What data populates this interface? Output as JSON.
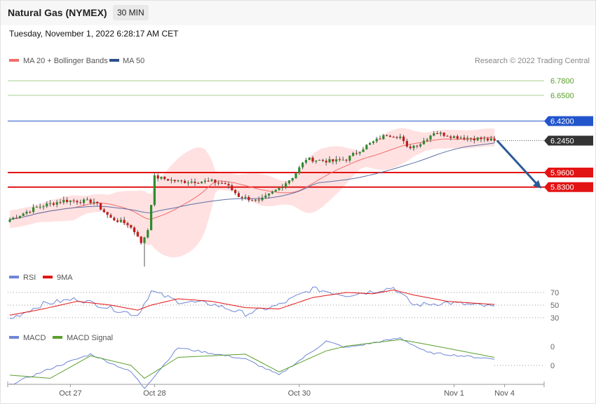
{
  "header": {
    "title": "Natural Gas (NYMEX)",
    "interval": "30 MIN",
    "datetime": "Tuesday, November 1, 2022 6:28:17 AM CET"
  },
  "legend": {
    "ma20": "MA 20 + Bollinger Bands",
    "ma50": "MA 50",
    "copyright": "Research © 2022 Trading Central"
  },
  "colors": {
    "bullish": "#2e8b2e",
    "bearish": "#c41c1c",
    "ma20": "#f26d6d",
    "ma50": "#5f6fa3",
    "bands": "#ffdcdc",
    "target_green": "#a9d18e",
    "resistance_blue": "#2255cc",
    "support_red": "#e31414",
    "arrow": "#2d5a96",
    "rsi": "#6f86d6",
    "rsi_ma": "#e31414",
    "macd": "#6f86d6",
    "macd_signal": "#5aa02c"
  },
  "chart_data": [
    {
      "type": "candlestick",
      "name": "price",
      "x_labels": [
        "Oct 27",
        "Oct 28",
        "Oct 30",
        "Nov 1",
        "Nov 4"
      ],
      "price_levels": [
        {
          "value": 6.78,
          "label": "6.7800",
          "kind": "target"
        },
        {
          "value": 6.65,
          "label": "6.6500",
          "kind": "target"
        },
        {
          "value": 6.42,
          "label": "6.4200",
          "kind": "resistance"
        },
        {
          "value": 6.245,
          "label": "6.2450",
          "kind": "last"
        },
        {
          "value": 5.96,
          "label": "5.9600",
          "kind": "support"
        },
        {
          "value": 5.83,
          "label": "5.8300",
          "kind": "support"
        }
      ],
      "forecast_arrow": {
        "from": 6.245,
        "to": 5.83
      },
      "key_points": [
        {
          "x": 0,
          "close": 5.54
        },
        {
          "x": 8,
          "close": 5.65
        },
        {
          "x": 16,
          "close": 5.71
        },
        {
          "x": 25,
          "close": 5.7
        },
        {
          "x": 30,
          "close": 5.55
        },
        {
          "x": 35,
          "close": 5.5
        },
        {
          "x": 38,
          "close": 5.4
        },
        {
          "x": 39,
          "close": 5.32
        },
        {
          "x": 41,
          "close": 5.45
        },
        {
          "x": 43,
          "close": 5.92
        },
        {
          "x": 50,
          "close": 5.88
        },
        {
          "x": 60,
          "close": 5.88
        },
        {
          "x": 64,
          "close": 5.86
        },
        {
          "x": 68,
          "close": 5.75
        },
        {
          "x": 74,
          "close": 5.7
        },
        {
          "x": 80,
          "close": 5.82
        },
        {
          "x": 84,
          "close": 5.92
        },
        {
          "x": 88,
          "close": 6.08
        },
        {
          "x": 96,
          "close": 6.06
        },
        {
          "x": 100,
          "close": 6.08
        },
        {
          "x": 106,
          "close": 6.2
        },
        {
          "x": 112,
          "close": 6.3
        },
        {
          "x": 116,
          "close": 6.28
        },
        {
          "x": 118,
          "close": 6.18
        },
        {
          "x": 122,
          "close": 6.22
        },
        {
          "x": 126,
          "close": 6.32
        },
        {
          "x": 132,
          "close": 6.28
        },
        {
          "x": 140,
          "close": 6.26
        },
        {
          "x": 144,
          "close": 6.245
        }
      ],
      "spike_low": 5.12
    },
    {
      "type": "line",
      "name": "RSI",
      "series": [
        {
          "name": "RSI"
        },
        {
          "name": "9MA"
        }
      ],
      "levels": [
        70,
        50,
        30
      ],
      "key_points": [
        {
          "x": 0,
          "rsi": 28,
          "ma": 34
        },
        {
          "x": 10,
          "rsi": 52,
          "ma": 44
        },
        {
          "x": 20,
          "rsi": 60,
          "ma": 56
        },
        {
          "x": 30,
          "rsi": 45,
          "ma": 50
        },
        {
          "x": 38,
          "rsi": 34,
          "ma": 42
        },
        {
          "x": 42,
          "rsi": 72,
          "ma": 50
        },
        {
          "x": 50,
          "rsi": 56,
          "ma": 60
        },
        {
          "x": 60,
          "rsi": 52,
          "ma": 56
        },
        {
          "x": 70,
          "rsi": 36,
          "ma": 46
        },
        {
          "x": 80,
          "rsi": 50,
          "ma": 44
        },
        {
          "x": 90,
          "rsi": 76,
          "ma": 62
        },
        {
          "x": 100,
          "rsi": 66,
          "ma": 70
        },
        {
          "x": 108,
          "rsi": 72,
          "ma": 68
        },
        {
          "x": 114,
          "rsi": 78,
          "ma": 74
        },
        {
          "x": 120,
          "rsi": 50,
          "ma": 66
        },
        {
          "x": 130,
          "rsi": 54,
          "ma": 56
        },
        {
          "x": 144,
          "rsi": 47,
          "ma": 51
        }
      ]
    },
    {
      "type": "line",
      "name": "MACD",
      "series": [
        {
          "name": "MACD"
        },
        {
          "name": "MACD Signal"
        }
      ],
      "levels": [
        0,
        0
      ],
      "key_points": [
        {
          "x": 0,
          "macd": -0.06,
          "signal": -0.03
        },
        {
          "x": 12,
          "macd": -0.01,
          "signal": -0.04
        },
        {
          "x": 24,
          "macd": 0.035,
          "signal": 0.03
        },
        {
          "x": 36,
          "macd": -0.02,
          "signal": 0.0
        },
        {
          "x": 40,
          "macd": -0.07,
          "signal": -0.04
        },
        {
          "x": 50,
          "macd": 0.055,
          "signal": 0.025
        },
        {
          "x": 70,
          "macd": 0.02,
          "signal": 0.035
        },
        {
          "x": 80,
          "macd": -0.03,
          "signal": -0.02
        },
        {
          "x": 94,
          "macd": 0.075,
          "signal": 0.045
        },
        {
          "x": 100,
          "macd": 0.055,
          "signal": 0.06
        },
        {
          "x": 116,
          "macd": 0.085,
          "signal": 0.08
        },
        {
          "x": 124,
          "macd": 0.04,
          "signal": 0.065
        },
        {
          "x": 144,
          "macd": 0.02,
          "signal": 0.025
        }
      ],
      "level_labels": [
        "0",
        "0"
      ]
    }
  ]
}
